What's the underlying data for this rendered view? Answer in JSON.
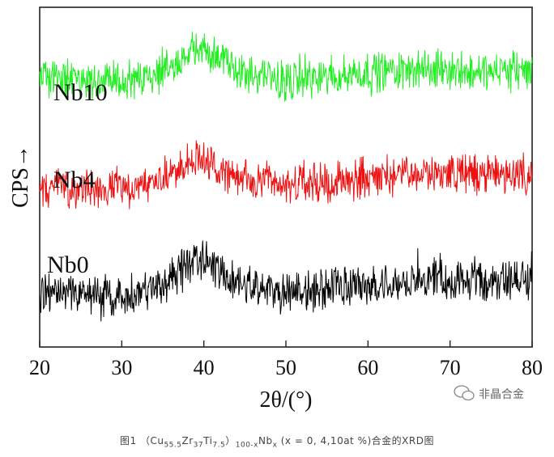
{
  "chart_data": {
    "type": "line",
    "xlabel": "2θ/(°)",
    "ylabel": "CPS→",
    "xlim": [
      20,
      80
    ],
    "xticks": [
      20,
      30,
      40,
      50,
      60,
      70,
      80
    ],
    "grid": false,
    "series": [
      {
        "name": "Nb10",
        "color": "#22ee22",
        "baseline": 3.0,
        "x": [
          20,
          25,
          30,
          34,
          36,
          38,
          39.5,
          41,
          43,
          46,
          50,
          55,
          60,
          65,
          70,
          75,
          80
        ],
        "y": [
          3.0,
          2.98,
          2.97,
          3.0,
          3.12,
          3.3,
          3.36,
          3.3,
          3.15,
          3.02,
          2.98,
          3.02,
          3.08,
          3.1,
          3.1,
          3.08,
          3.1
        ]
      },
      {
        "name": "Nb4",
        "color": "#ee1111",
        "baseline": 1.8,
        "x": [
          20,
          25,
          30,
          34,
          36,
          38,
          39.5,
          41,
          43,
          46,
          50,
          55,
          60,
          65,
          70,
          75,
          80
        ],
        "y": [
          1.8,
          1.8,
          1.78,
          1.82,
          1.95,
          2.08,
          2.1,
          2.04,
          1.93,
          1.84,
          1.8,
          1.84,
          1.9,
          1.93,
          1.95,
          1.93,
          1.93
        ]
      },
      {
        "name": "Nb0",
        "color": "#000000",
        "baseline": 0.6,
        "x": [
          20,
          25,
          30,
          34,
          36,
          38,
          39.5,
          41,
          43,
          46,
          50,
          55,
          60,
          65,
          70,
          75,
          80
        ],
        "y": [
          0.6,
          0.6,
          0.58,
          0.62,
          0.76,
          0.92,
          0.98,
          0.92,
          0.78,
          0.66,
          0.6,
          0.64,
          0.7,
          0.73,
          0.75,
          0.73,
          0.75
        ]
      }
    ]
  },
  "watermark": "非晶合金",
  "caption": {
    "prefix": "图1 （Cu",
    "cu_sub": "55.5",
    "zr": "Zr",
    "zr_sub": "37",
    "ti": "Ti",
    "ti_sub": "7.5",
    "close": "）",
    "close_sub": "100-x",
    "nb": "Nb",
    "nb_sub": "x",
    "suffix": " (x = 0, 4,10at %)合金的XRD图"
  }
}
